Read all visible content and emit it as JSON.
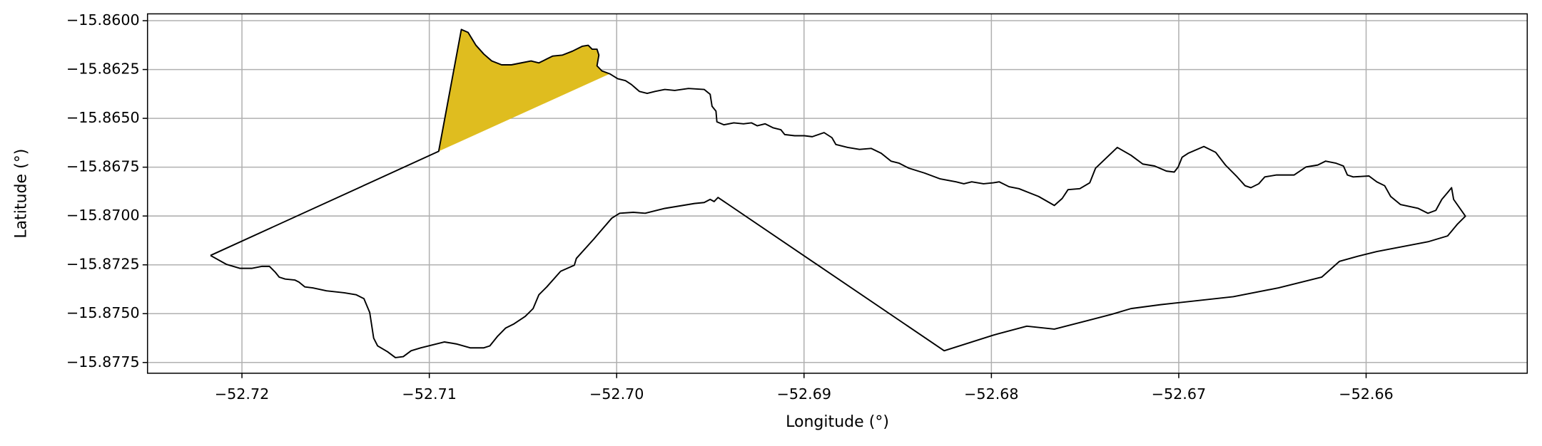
{
  "chart_data": {
    "type": "line",
    "x_label": "Longitude (°)",
    "y_label": "Latitude (°)",
    "xlim": [
      -52.72504,
      -52.6514
    ],
    "ylim": [
      -15.87805,
      -15.85965
    ],
    "xticks": [
      {
        "value": -52.72,
        "label": "−52.72"
      },
      {
        "value": -52.71,
        "label": "−52.71"
      },
      {
        "value": -52.7,
        "label": "−52.70"
      },
      {
        "value": -52.69,
        "label": "−52.69"
      },
      {
        "value": -52.68,
        "label": "−52.68"
      },
      {
        "value": -52.67,
        "label": "−52.67"
      },
      {
        "value": -52.66,
        "label": "−52.66"
      }
    ],
    "yticks": [
      {
        "value": -15.86,
        "label": "−15.8600"
      },
      {
        "value": -15.8625,
        "label": "−15.8625"
      },
      {
        "value": -15.865,
        "label": "−15.8650"
      },
      {
        "value": -15.8675,
        "label": "−15.8675"
      },
      {
        "value": -15.87,
        "label": "−15.8700"
      },
      {
        "value": -15.8725,
        "label": "−15.8725"
      },
      {
        "value": -15.875,
        "label": "−15.8750"
      },
      {
        "value": -15.8775,
        "label": "−15.8775"
      }
    ],
    "grid": true,
    "series": [
      {
        "color": "#dfbd1f",
        "fill": true,
        "x": [
          -52.7095,
          -52.70829,
          -52.70793,
          -52.70751,
          -52.70709,
          -52.70667,
          -52.70614,
          -52.70562,
          -52.70509,
          -52.70457,
          -52.70415,
          -52.70373,
          -52.70341,
          -52.70289,
          -52.70236,
          -52.70184,
          -52.70152,
          -52.70131,
          -52.70105,
          -52.70095,
          -52.70105,
          -52.70079,
          -52.70037
        ],
        "values": [
          -15.86669,
          -15.86045,
          -15.8606,
          -15.86126,
          -15.86171,
          -15.86206,
          -15.86226,
          -15.86226,
          -15.86216,
          -15.86206,
          -15.86216,
          -15.86196,
          -15.86181,
          -15.86176,
          -15.86156,
          -15.86131,
          -15.86126,
          -15.86146,
          -15.86146,
          -15.86176,
          -15.86231,
          -15.86257,
          -15.86272
        ]
      },
      {
        "color": "#000000",
        "fill": false,
        "x": [
          -52.72168,
          -52.7095,
          -52.70829,
          -52.70793,
          -52.70751,
          -52.70709,
          -52.70667,
          -52.70614,
          -52.70562,
          -52.70509,
          -52.70457,
          -52.70415,
          -52.70373,
          -52.70341,
          -52.70289,
          -52.70236,
          -52.70184,
          -52.70152,
          -52.70131,
          -52.70105,
          -52.70095,
          -52.70105,
          -52.70079,
          -52.70037,
          -52.69995,
          -52.69953,
          -52.69921,
          -52.69879,
          -52.69837,
          -52.69795,
          -52.69743,
          -52.6969,
          -52.69617,
          -52.69533,
          -52.69501,
          -52.69491,
          -52.6947,
          -52.69465,
          -52.69428,
          -52.69375,
          -52.69323,
          -52.69281,
          -52.6925,
          -52.69208,
          -52.69166,
          -52.69124,
          -52.69103,
          -52.6905,
          -52.68998,
          -52.68956,
          -52.68893,
          -52.68851,
          -52.6883,
          -52.68767,
          -52.68704,
          -52.68641,
          -52.68588,
          -52.68536,
          -52.68494,
          -52.68441,
          -52.68357,
          -52.68273,
          -52.68189,
          -52.68147,
          -52.68105,
          -52.68042,
          -52.6799,
          -52.67958,
          -52.67906,
          -52.67853,
          -52.67801,
          -52.67748,
          -52.67664,
          -52.67622,
          -52.67591,
          -52.67528,
          -52.67475,
          -52.67444,
          -52.67328,
          -52.67255,
          -52.67192,
          -52.67129,
          -52.67066,
          -52.67024,
          -52.67003,
          -52.66982,
          -52.6695,
          -52.66866,
          -52.66803,
          -52.66751,
          -52.66688,
          -52.66646,
          -52.66615,
          -52.66573,
          -52.66541,
          -52.66478,
          -52.66384,
          -52.66321,
          -52.66258,
          -52.66216,
          -52.66163,
          -52.66121,
          -52.661,
          -52.66069,
          -52.65985,
          -52.65943,
          -52.65901,
          -52.65869,
          -52.65817,
          -52.65722,
          -52.6567,
          -52.65628,
          -52.65596,
          -52.65565,
          -52.65544,
          -52.65533,
          -52.6547,
          -52.65512,
          -52.65565,
          -52.6567,
          -52.65943,
          -52.66048,
          -52.66142,
          -52.66237,
          -52.66468,
          -52.66709,
          -52.67097,
          -52.67255,
          -52.6736,
          -52.67664,
          -52.67811,
          -52.6799,
          -52.68252,
          -52.69459,
          -52.6948,
          -52.69501,
          -52.69533,
          -52.69585,
          -52.69648,
          -52.69743,
          -52.69848,
          -52.69911,
          -52.69984,
          -52.70026,
          -52.70089,
          -52.70121,
          -52.70215,
          -52.70226,
          -52.70299,
          -52.70373,
          -52.70415,
          -52.70446,
          -52.70488,
          -52.70551,
          -52.70593,
          -52.70635,
          -52.70677,
          -52.70709,
          -52.70782,
          -52.70856,
          -52.70919,
          -52.70982,
          -52.71045,
          -52.71097,
          -52.71139,
          -52.71181,
          -52.71223,
          -52.71276,
          -52.71297,
          -52.71318,
          -52.71349,
          -52.71391,
          -52.71454,
          -52.71549,
          -52.71622,
          -52.71664,
          -52.71696,
          -52.71717,
          -52.71769,
          -52.71801,
          -52.71822,
          -52.71853,
          -52.71895,
          -52.71948,
          -52.7201,
          -52.72084,
          -52.72168
        ],
        "values": [
          -15.87202,
          -15.86669,
          -15.86045,
          -15.8606,
          -15.86126,
          -15.86171,
          -15.86206,
          -15.86226,
          -15.86226,
          -15.86216,
          -15.86206,
          -15.86216,
          -15.86196,
          -15.86181,
          -15.86176,
          -15.86156,
          -15.86131,
          -15.86126,
          -15.86146,
          -15.86146,
          -15.86176,
          -15.86231,
          -15.86257,
          -15.86272,
          -15.86297,
          -15.86307,
          -15.86327,
          -15.86362,
          -15.86372,
          -15.86362,
          -15.86352,
          -15.86357,
          -15.86347,
          -15.86352,
          -15.86377,
          -15.86438,
          -15.86463,
          -15.86518,
          -15.86533,
          -15.86523,
          -15.86528,
          -15.86523,
          -15.86538,
          -15.86528,
          -15.86548,
          -15.86558,
          -15.86583,
          -15.86589,
          -15.86589,
          -15.86594,
          -15.86573,
          -15.86599,
          -15.86634,
          -15.86649,
          -15.86659,
          -15.86654,
          -15.86679,
          -15.86719,
          -15.86729,
          -15.86755,
          -15.8678,
          -15.8681,
          -15.86825,
          -15.86835,
          -15.86825,
          -15.86835,
          -15.8683,
          -15.86825,
          -15.8685,
          -15.8686,
          -15.8688,
          -15.869,
          -15.86946,
          -15.8691,
          -15.86865,
          -15.8686,
          -15.8683,
          -15.86755,
          -15.86649,
          -15.86689,
          -15.86734,
          -15.86744,
          -15.8677,
          -15.86775,
          -15.86749,
          -15.86699,
          -15.86679,
          -15.86644,
          -15.86674,
          -15.86739,
          -15.868,
          -15.86845,
          -15.86855,
          -15.86835,
          -15.868,
          -15.8679,
          -15.8679,
          -15.86749,
          -15.86739,
          -15.86719,
          -15.86729,
          -15.86744,
          -15.8679,
          -15.868,
          -15.86795,
          -15.86825,
          -15.86845,
          -15.869,
          -15.86941,
          -15.86961,
          -15.86986,
          -15.86971,
          -15.86915,
          -15.8688,
          -15.86855,
          -15.86915,
          -15.87001,
          -15.87041,
          -15.87102,
          -15.87132,
          -15.87182,
          -15.87207,
          -15.87232,
          -15.87313,
          -15.87368,
          -15.87413,
          -15.87454,
          -15.87474,
          -15.87504,
          -15.87579,
          -15.87564,
          -15.8761,
          -15.8769,
          -15.86905,
          -15.86926,
          -15.86915,
          -15.86931,
          -15.86936,
          -15.86946,
          -15.86961,
          -15.86986,
          -15.86981,
          -15.86986,
          -15.87011,
          -15.87081,
          -15.87117,
          -15.87217,
          -15.87252,
          -15.87283,
          -15.87363,
          -15.87403,
          -15.87474,
          -15.87514,
          -15.87554,
          -15.87574,
          -15.87615,
          -15.87665,
          -15.87675,
          -15.87675,
          -15.87655,
          -15.87645,
          -15.8766,
          -15.87675,
          -15.8769,
          -15.8772,
          -15.87725,
          -15.87695,
          -15.87665,
          -15.87625,
          -15.87494,
          -15.87423,
          -15.87403,
          -15.87393,
          -15.87383,
          -15.87368,
          -15.87363,
          -15.87338,
          -15.87328,
          -15.87323,
          -15.87313,
          -15.87288,
          -15.87258,
          -15.87258,
          -15.87268,
          -15.87268,
          -15.87247,
          -15.87202
        ]
      }
    ]
  }
}
